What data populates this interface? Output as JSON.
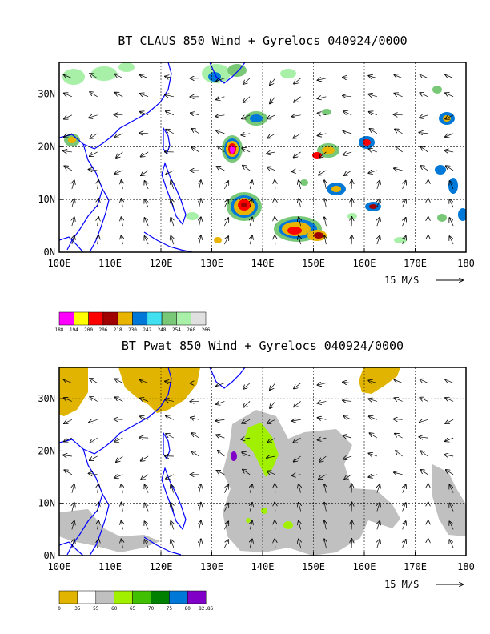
{
  "chart_data": [
    {
      "type": "heatmap",
      "title": "BT CLAUS 850 Wind + Gyrelocs 040924/0000",
      "x_ticks": [
        "100E",
        "110E",
        "120E",
        "130E",
        "140E",
        "150E",
        "160E",
        "170E",
        "180"
      ],
      "y_ticks": [
        "0N",
        "10N",
        "20N",
        "30N"
      ],
      "xlim": [
        100,
        180
      ],
      "ylim": [
        0,
        36
      ],
      "grid": true,
      "vector_reference": "15 M/S",
      "colorbar": {
        "labels": [
          "188",
          "194",
          "200",
          "206",
          "218",
          "230",
          "242",
          "248",
          "254",
          "260",
          "266"
        ],
        "colors": [
          "#ff00ff",
          "#ffff00",
          "#ff0000",
          "#a00000",
          "#e8b400",
          "#0078d8",
          "#40e0f0",
          "#78c878",
          "#a8f0a8",
          "#e0e0e0"
        ]
      }
    },
    {
      "type": "heatmap",
      "title": "BT Pwat 850 Wind + Gyrelocs 040924/0000",
      "x_ticks": [
        "100E",
        "110E",
        "120E",
        "130E",
        "140E",
        "150E",
        "160E",
        "170E",
        "180"
      ],
      "y_ticks": [
        "0N",
        "10N",
        "20N",
        "30N"
      ],
      "xlim": [
        100,
        180
      ],
      "ylim": [
        0,
        36
      ],
      "grid": true,
      "vector_reference": "15 M/S",
      "colorbar": {
        "labels": [
          "0",
          "35",
          "55",
          "60",
          "65",
          "70",
          "75",
          "80",
          "82.86"
        ],
        "colors": [
          "#e0b400",
          "#ffffff",
          "#c0c0c0",
          "#a0f000",
          "#40c000",
          "#008000",
          "#0078d8",
          "#8000c8"
        ]
      }
    }
  ]
}
